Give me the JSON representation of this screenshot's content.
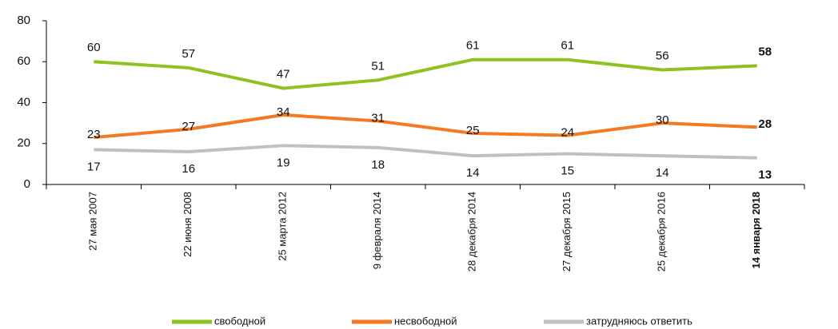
{
  "chart_data": {
    "type": "line",
    "categories": [
      "27 мая 2007",
      "22 июня 2008",
      "25 марта 2012",
      "9 февраля 2014",
      "28 декабря 2014",
      "27 декабря 2015",
      "25 декабря 2016",
      "14 января 2018"
    ],
    "series": [
      {
        "name": "свободной",
        "color": "#8dc21f",
        "values": [
          60,
          57,
          47,
          51,
          61,
          61,
          56,
          58
        ]
      },
      {
        "name": "несвободной",
        "color": "#f47920",
        "values": [
          23,
          27,
          34,
          31,
          25,
          24,
          30,
          28
        ]
      },
      {
        "name": "затрудняюсь ответить",
        "color": "#c0c0c0",
        "values": [
          17,
          16,
          19,
          18,
          14,
          15,
          14,
          13
        ]
      }
    ],
    "ylim": [
      0,
      80
    ],
    "yticks": [
      0,
      20,
      40,
      60,
      80
    ],
    "legend": "bottom"
  }
}
